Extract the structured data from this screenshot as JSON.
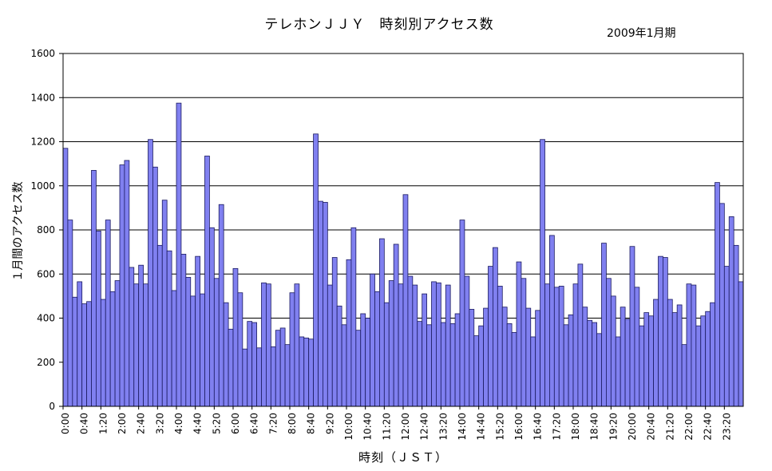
{
  "chart_data": {
    "type": "bar",
    "title": "テレホンＪＪＹ　時刻別アクセス数",
    "subtitle": "2009年1月期",
    "xlabel": "時刻（ＪＳＴ）",
    "ylabel": "１月間のアクセス数",
    "ylim": [
      0,
      1600
    ],
    "yticks": [
      "0",
      "200",
      "400",
      "600",
      "800",
      "1000",
      "1200",
      "1400",
      "1600"
    ],
    "grid": true,
    "bar_color": "#8080f0",
    "xtick_labels": [
      "0:00",
      "0:40",
      "1:20",
      "2:00",
      "2:40",
      "3:20",
      "4:00",
      "4:40",
      "5:20",
      "6:00",
      "6:40",
      "7:20",
      "8:00",
      "8:40",
      "9:20",
      "10:00",
      "10:40",
      "11:20",
      "12:00",
      "12:40",
      "13:20",
      "14:00",
      "14:40",
      "15:20",
      "16:00",
      "16:40",
      "17:20",
      "18:00",
      "18:40",
      "19:20",
      "20:00",
      "20:40",
      "21:20",
      "22:00",
      "22:40",
      "23:20"
    ],
    "xtick_every": 4,
    "values": [
      1170,
      845,
      495,
      565,
      465,
      475,
      1070,
      795,
      485,
      845,
      520,
      570,
      1095,
      1115,
      630,
      555,
      640,
      555,
      1210,
      1085,
      730,
      935,
      705,
      525,
      1375,
      690,
      585,
      500,
      680,
      510,
      1135,
      810,
      580,
      915,
      470,
      350,
      625,
      515,
      260,
      385,
      380,
      265,
      560,
      555,
      270,
      345,
      355,
      280,
      515,
      555,
      315,
      310,
      305,
      1235,
      930,
      925,
      550,
      675,
      455,
      370,
      665,
      810,
      345,
      420,
      400,
      600,
      520,
      760,
      470,
      570,
      735,
      555,
      960,
      590,
      550,
      385,
      510,
      370,
      565,
      560,
      380,
      550,
      375,
      420,
      845,
      590,
      440,
      320,
      365,
      445,
      635,
      720,
      545,
      450,
      375,
      335,
      655,
      580,
      445,
      315,
      435,
      1210,
      555,
      775,
      540,
      545,
      370,
      415,
      555,
      645,
      450,
      390,
      380,
      330,
      740,
      580,
      500,
      315,
      450,
      395,
      725,
      540,
      365,
      425,
      410,
      485,
      680,
      675,
      485,
      425,
      460,
      280,
      555,
      550,
      365,
      410,
      430,
      470,
      1015,
      920,
      635,
      860,
      730,
      565
    ]
  }
}
